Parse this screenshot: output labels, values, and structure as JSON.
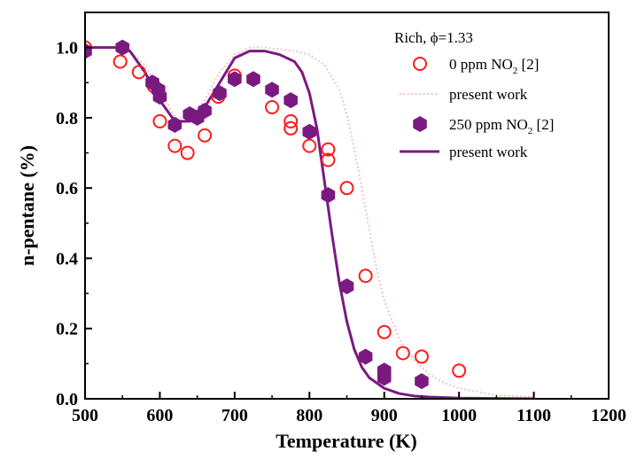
{
  "chart_data": {
    "type": "scatter",
    "xlabel": "Temperature (K)",
    "ylabel": "n-pentane (%)",
    "xlim": [
      500,
      1200
    ],
    "ylim": [
      0.0,
      1.1
    ],
    "x_ticks": [
      "500",
      "600",
      "700",
      "800",
      "900",
      "1000",
      "1100",
      "1200"
    ],
    "y_ticks": [
      "0.0",
      "0.2",
      "0.4",
      "0.6",
      "0.8",
      "1.0"
    ],
    "grid": false,
    "legend": {
      "title": "Rich, ϕ=1.33",
      "placement": "top-right",
      "entries": [
        {
          "main": "0 ppm NO",
          "sub": "2",
          "tail": " [2]"
        },
        {
          "main": "present work",
          "sub": "",
          "tail": ""
        },
        {
          "main": "250 ppm NO",
          "sub": "2",
          "tail": " [2]"
        },
        {
          "main": "present work",
          "sub": "",
          "tail": ""
        }
      ]
    },
    "colors": {
      "open_circle": "#ff1a1a",
      "hexagon": "#7a1a80",
      "solid_line": "#7a1a80",
      "dotted_line": "#f0b4b4"
    },
    "series": [
      {
        "kind": "open-circle",
        "x": [
          500,
          547,
          572,
          592,
          600,
          620,
          637,
          660,
          678,
          700,
          750,
          775,
          775,
          800,
          825,
          825,
          850,
          875,
          900,
          925,
          950,
          1000
        ],
        "y": [
          1.0,
          0.96,
          0.93,
          0.89,
          0.79,
          0.72,
          0.7,
          0.75,
          0.86,
          0.92,
          0.83,
          0.79,
          0.77,
          0.72,
          0.71,
          0.68,
          0.6,
          0.35,
          0.19,
          0.13,
          0.12,
          0.08
        ]
      },
      {
        "kind": "dotted-line",
        "x": [
          500,
          540,
          560,
          580,
          600,
          620,
          640,
          660,
          680,
          700,
          720,
          740,
          760,
          780,
          800,
          820,
          840,
          850,
          860,
          870,
          880,
          890,
          900,
          920,
          940,
          960,
          980,
          1000,
          1050,
          1100
        ],
        "y": [
          1.0,
          1.0,
          0.99,
          0.95,
          0.88,
          0.8,
          0.8,
          0.85,
          0.93,
          0.98,
          1.0,
          1.0,
          0.995,
          0.99,
          0.98,
          0.95,
          0.88,
          0.81,
          0.71,
          0.6,
          0.48,
          0.37,
          0.28,
          0.17,
          0.11,
          0.07,
          0.045,
          0.03,
          0.01,
          0.005
        ]
      },
      {
        "kind": "hexagon",
        "x": [
          500,
          550,
          590,
          598,
          600,
          620,
          640,
          650,
          660,
          680,
          700,
          725,
          750,
          775,
          800,
          825,
          850,
          875,
          900,
          900,
          950
        ],
        "y": [
          0.99,
          1.0,
          0.9,
          0.88,
          0.86,
          0.78,
          0.81,
          0.8,
          0.82,
          0.87,
          0.91,
          0.91,
          0.88,
          0.85,
          0.76,
          0.58,
          0.32,
          0.12,
          0.08,
          0.06,
          0.05
        ]
      },
      {
        "kind": "solid-line",
        "x": [
          500,
          540,
          560,
          580,
          600,
          620,
          640,
          660,
          680,
          700,
          720,
          740,
          760,
          780,
          790,
          800,
          810,
          820,
          830,
          840,
          850,
          860,
          870,
          880,
          900,
          920,
          940,
          960,
          1000,
          1050,
          1100
        ],
        "y": [
          1.0,
          1.0,
          0.99,
          0.93,
          0.85,
          0.79,
          0.79,
          0.83,
          0.9,
          0.97,
          0.99,
          0.99,
          0.98,
          0.96,
          0.93,
          0.87,
          0.77,
          0.62,
          0.47,
          0.33,
          0.22,
          0.14,
          0.09,
          0.06,
          0.03,
          0.015,
          0.008,
          0.005,
          0.002,
          0.001,
          0.0
        ]
      }
    ]
  }
}
